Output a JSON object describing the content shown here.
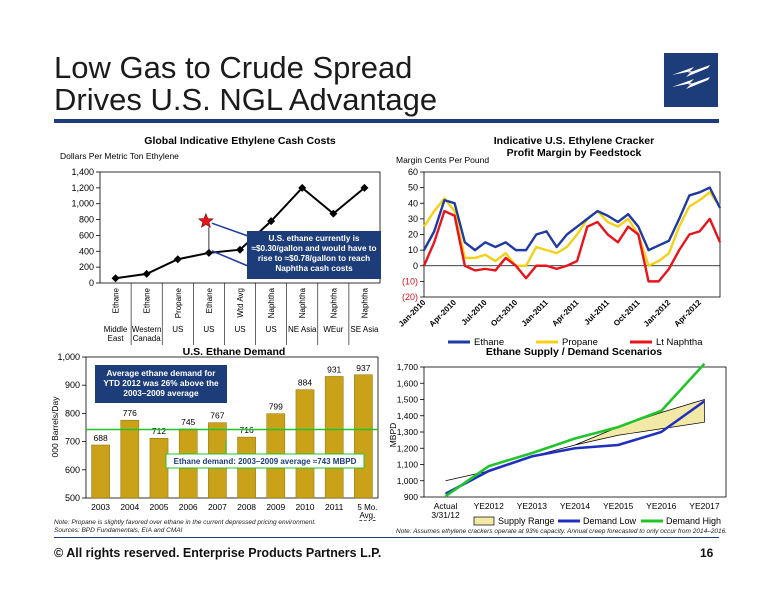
{
  "slide": {
    "title_line1": "Low Gas to Crude Spread",
    "title_line2": "Drives U.S. NGL Advantage",
    "footer": "©  All rights reserved. Enterprise Products Partners L.P.",
    "page_number": "16",
    "note_left_1": "Note:  Propane is slightly favored over ethane in the current depressed pricing environment.",
    "note_left_2": "Sources:  BPD Fundamentals, EIA and CMAI",
    "note_right": "Note:  Assumes ethylene crackers operate at 93% capacity. Annual creep forecasted to only occur from 2014–2016."
  },
  "colors": {
    "navy": "#1c3d7a",
    "ethane": "#1f3aa0",
    "propane": "#f5d018",
    "naphtha": "#e8141b",
    "bar": "#c9a21a",
    "green": "#21c42b",
    "supply": "#f3e9a6"
  },
  "chart_data": [
    {
      "type": "line",
      "title": "Global Indicative Ethylene Cash Costs",
      "ylabel": "Dollars Per Metric Ton Ethylene",
      "ylim": [
        0,
        1400
      ],
      "yticks": [
        "0",
        "200",
        "400",
        "600",
        "800",
        "1,000",
        "1,200",
        "1,400"
      ],
      "categories": [
        "Ethane",
        "Ethane",
        "Propane",
        "Ethane",
        "Wtd Avg",
        "Naphtha",
        "Naphtha",
        "Naphtha",
        "Naphtha"
      ],
      "regions": [
        "Middle East",
        "Western Canada",
        "US",
        "US",
        "US",
        "US",
        "NE Asia",
        "WEur",
        "SE Asia"
      ],
      "values": [
        60,
        115,
        300,
        380,
        420,
        780,
        1200,
        875,
        1200
      ],
      "star_value": 780,
      "annotation": "U.S. ethane currently is ≈$0.30/gallon and would have to rise to ≈$0.78/gallon to reach Naphtha cash costs"
    },
    {
      "type": "line",
      "title": "Indicative U.S. Ethylene Cracker Profit Margin by Feedstock",
      "ylabel": "Margin Cents Per Pound",
      "ylim": [
        -20,
        60
      ],
      "yticks": [
        "(20)",
        "(10)",
        "0",
        "10",
        "20",
        "30",
        "40",
        "50",
        "60"
      ],
      "xticks": [
        "Jan-2010",
        "Apr-2010",
        "Jul-2010",
        "Oct-2010",
        "Jan-2011",
        "Apr-2011",
        "Jul-2011",
        "Oct-2011",
        "Jan-2012",
        "Apr-2012"
      ],
      "series": [
        {
          "name": "Ethane",
          "values": [
            10,
            22,
            42,
            40,
            15,
            10,
            15,
            12,
            15,
            10,
            10,
            20,
            22,
            12,
            20,
            25,
            30,
            35,
            32,
            28,
            33,
            25,
            10,
            13,
            16,
            30,
            45,
            47,
            50,
            37
          ]
        },
        {
          "name": "Propane",
          "values": [
            25,
            35,
            43,
            35,
            5,
            5,
            7,
            3,
            8,
            0,
            0,
            12,
            10,
            8,
            12,
            20,
            30,
            35,
            28,
            25,
            30,
            20,
            0,
            3,
            8,
            25,
            38,
            42,
            47,
            38
          ]
        },
        {
          "name": "Lt Naphtha",
          "values": [
            0,
            15,
            35,
            32,
            0,
            -3,
            -2,
            -3,
            5,
            0,
            -8,
            0,
            0,
            -2,
            0,
            3,
            25,
            28,
            20,
            15,
            25,
            20,
            -10,
            -10,
            -2,
            10,
            20,
            22,
            30,
            15
          ]
        }
      ]
    },
    {
      "type": "bar",
      "title": "U.S. Ethane Demand",
      "ylabel": "000 Barrels/Day",
      "ylim": [
        500,
        1000
      ],
      "yticks": [
        "500",
        "600",
        "700",
        "800",
        "900",
        "1,000"
      ],
      "categories": [
        "2003",
        "2004",
        "2005",
        "2006",
        "2007",
        "2008",
        "2009",
        "2010",
        "2011",
        "5 Mo. Avg. 2012"
      ],
      "values": [
        688,
        776,
        712,
        745,
        767,
        716,
        799,
        884,
        931,
        937
      ],
      "labels": [
        "688",
        "776",
        "712",
        "745",
        "767",
        "716",
        "799",
        "884",
        "931",
        "937"
      ],
      "average": 743,
      "avg_label": "Ethane demand: 2003–2009 average ≈743 MBPD",
      "callout": "Average ethane demand for YTD 2012 was 26% above the 2003–2009 average"
    },
    {
      "type": "line",
      "title": "Ethane Supply / Demand Scenarios",
      "ylabel": "MBPD",
      "ylim": [
        900,
        1700
      ],
      "yticks": [
        "900",
        "1,000",
        "1,100",
        "1,200",
        "1,300",
        "1,400",
        "1,500",
        "1,600",
        "1,700"
      ],
      "categories": [
        "Actual 3/31/12",
        "YE2012",
        "YE2013",
        "YE2014",
        "YE2015",
        "YE2016",
        "YE2017"
      ],
      "supply_low": [
        1000,
        1060,
        1150,
        1220,
        1280,
        1320,
        1360
      ],
      "supply_high": [
        1000,
        1060,
        1150,
        1220,
        1330,
        1420,
        1500
      ],
      "series": [
        {
          "name": "Supply Range"
        },
        {
          "name": "Demand Low",
          "values": [
            920,
            1060,
            1150,
            1200,
            1220,
            1300,
            1490
          ]
        },
        {
          "name": "Demand High",
          "values": [
            905,
            1090,
            1170,
            1260,
            1330,
            1430,
            1720
          ]
        }
      ]
    }
  ]
}
